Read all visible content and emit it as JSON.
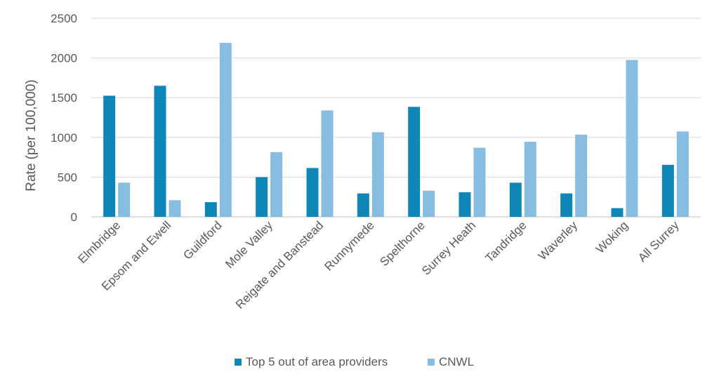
{
  "chart_data": {
    "type": "bar",
    "title": "",
    "xlabel": "",
    "ylabel": "Rate (per 100,000)",
    "ylim": [
      0,
      2500
    ],
    "yticks": [
      0,
      500,
      1000,
      1500,
      2000,
      2500
    ],
    "grid": true,
    "legend_position": "bottom",
    "categories": [
      "Elmbridge",
      "Epsom and Ewell",
      "Guildford",
      "Mole Valley",
      "Reigate and Banstead",
      "Runnymede",
      "Spelthorne",
      "Surrey Heath",
      "Tandridge",
      "Waverley",
      "Woking",
      "All Surrey"
    ],
    "series": [
      {
        "name": "Top 5 out of area providers",
        "color": "#0e87b8",
        "values": [
          1525,
          1650,
          185,
          500,
          615,
          295,
          1385,
          310,
          430,
          295,
          110,
          655
        ]
      },
      {
        "name": "CNWL",
        "color": "#88bde2",
        "values": [
          430,
          210,
          2190,
          815,
          1340,
          1065,
          330,
          870,
          945,
          1035,
          1975,
          1075
        ]
      }
    ]
  }
}
